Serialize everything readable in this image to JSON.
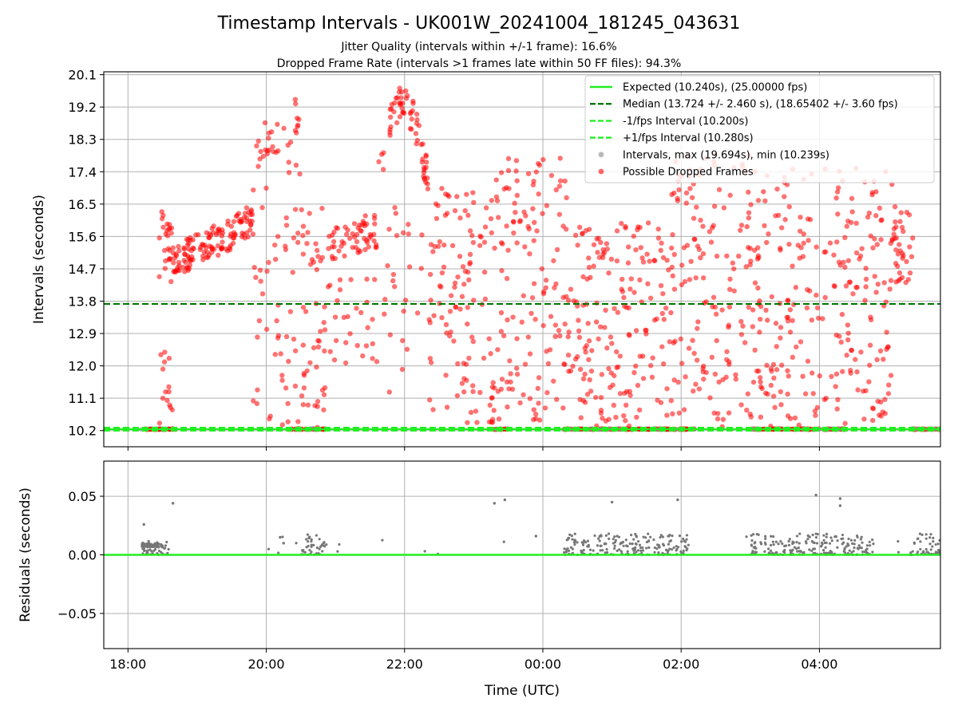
{
  "title": "Timestamp Intervals - UK001W_20241004_181245_043631",
  "subtitle_1": "Jitter Quality (intervals within +/-1 frame): 16.6%",
  "subtitle_2": "Dropped Frame Rate (intervals >1 frames late within 50 FF files): 94.3%",
  "chart_data": [
    {
      "type": "scatter",
      "ylabel": "Intervals (seconds)",
      "ylim": [
        9.75,
        20.18
      ],
      "yticks": [
        10.2,
        11.1,
        12.0,
        12.9,
        13.8,
        14.7,
        15.6,
        16.5,
        17.4,
        18.3,
        19.2,
        20.1
      ],
      "ytick_labels": [
        "10.2",
        "11.1",
        "12.0",
        "12.9",
        "13.8",
        "14.7",
        "15.6",
        "16.5",
        "17.4",
        "18.3",
        "19.2",
        "20.1"
      ],
      "xlim_hours": [
        17.65,
        29.75
      ],
      "grid": true,
      "legend_position": "top-right",
      "reference_lines": [
        {
          "name": "Expected (10.240s), (25.00000 fps)",
          "y": 10.24,
          "style": "solid",
          "color": "#22ee22"
        },
        {
          "name": "Median (13.724 +/- 2.460 s), (18.65402 +/- 3.60 fps)",
          "y": 13.724,
          "style": "dashed",
          "color": "#007700"
        },
        {
          "name": "-1/fps Interval (10.200s)",
          "y": 10.2,
          "style": "dashed",
          "color": "#22ee22"
        },
        {
          "name": "+1/fps Interval (10.280s)",
          "y": 10.28,
          "style": "dashed",
          "color": "#22ee22"
        }
      ],
      "series": [
        {
          "name": "Intervals, max (19.694s), min (10.239s)",
          "color": "#888888"
        },
        {
          "name": "Possible Dropped Frames",
          "color": "#ff0000"
        }
      ],
      "density_regions_hours": [
        [
          18.45,
          18.65,
          14.2,
          16.3
        ],
        [
          18.65,
          19.3,
          14.5,
          15.9
        ],
        [
          19.3,
          19.8,
          15.2,
          16.6
        ],
        [
          19.8,
          20.5,
          10.2,
          19.5
        ],
        [
          20.5,
          20.9,
          10.2,
          16.5
        ],
        [
          20.9,
          21.6,
          14.0,
          16.5
        ],
        [
          21.6,
          22.35,
          16.5,
          19.6
        ],
        [
          22.35,
          23.3,
          10.4,
          17.0
        ],
        [
          23.3,
          24.4,
          10.4,
          17.8
        ],
        [
          24.4,
          25.8,
          10.3,
          16.0
        ],
        [
          25.8,
          27.1,
          10.3,
          17.9
        ],
        [
          27.1,
          29.05,
          10.3,
          17.5
        ],
        [
          29.05,
          29.35,
          14.3,
          16.7
        ]
      ],
      "flat_bands_hours": [
        [
          18.2,
          18.5,
          10.24
        ],
        [
          18.4,
          18.7,
          10.24
        ],
        [
          20.3,
          20.85,
          10.24
        ],
        [
          23.3,
          23.5,
          10.24
        ],
        [
          24.3,
          26.2,
          10.24
        ],
        [
          27.0,
          28.4,
          10.24
        ],
        [
          29.3,
          29.75,
          10.24
        ]
      ]
    },
    {
      "type": "scatter",
      "xlabel": "Time (UTC)",
      "ylabel": "Residuals (seconds)",
      "ylim": [
        -0.08,
        0.08
      ],
      "yticks": [
        -0.05,
        0.0,
        0.05
      ],
      "ytick_labels": [
        "−0.05",
        "0.00",
        "0.05"
      ],
      "xticks_hours": [
        18,
        20,
        22,
        24,
        26,
        28
      ],
      "xtick_labels": [
        "18:00",
        "20:00",
        "22:00",
        "00:00",
        "02:00",
        "04:00"
      ],
      "xlim_hours": [
        17.65,
        29.75
      ],
      "grid": true,
      "zero_line_color": "#22ee22",
      "series_color": "#777777",
      "clusters_hours": [
        [
          18.2,
          18.6,
          0.0,
          0.012
        ],
        [
          20.5,
          20.85,
          0.0,
          0.018
        ],
        [
          24.3,
          25.5,
          0.0,
          0.018
        ],
        [
          25.5,
          26.1,
          0.0,
          0.018
        ],
        [
          27.0,
          28.8,
          0.0,
          0.018
        ],
        [
          29.3,
          29.75,
          0.0,
          0.018
        ]
      ],
      "outliers": [
        [
          18.23,
          0.026
        ],
        [
          18.65,
          0.044
        ],
        [
          23.3,
          0.044
        ],
        [
          23.45,
          0.047
        ],
        [
          25.0,
          0.045
        ],
        [
          25.95,
          0.047
        ],
        [
          27.95,
          0.051
        ],
        [
          28.3,
          0.048
        ],
        [
          28.3,
          0.042
        ],
        [
          20.2,
          0.015
        ],
        [
          20.25,
          0.01
        ],
        [
          23.9,
          0.016
        ]
      ]
    }
  ]
}
